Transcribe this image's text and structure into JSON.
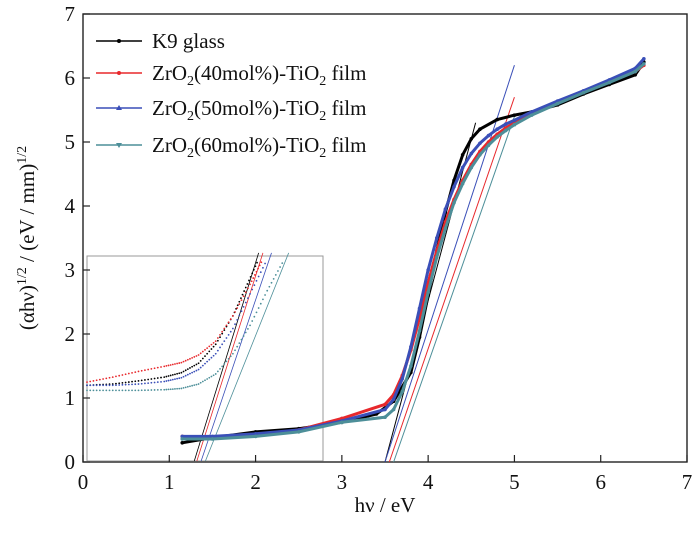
{
  "chart_data": {
    "type": "line",
    "title": "",
    "xlabel": {
      "main": "hν / eV"
    },
    "ylabel": {
      "a": "(αhν)",
      "sup1": "1/2",
      "b": " / (eV / mm)",
      "sup2": "1/2"
    },
    "xlim": [
      0,
      7
    ],
    "ylim": [
      0,
      7
    ],
    "xticks": [
      "0",
      "1",
      "2",
      "3",
      "4",
      "5",
      "6",
      "7"
    ],
    "yticks": [
      "0",
      "1",
      "2",
      "3",
      "4",
      "5",
      "6",
      "7"
    ],
    "grid": false,
    "legend_position": "top-left",
    "legend": [
      {
        "pre": "K9 glass",
        "sub": "",
        "mid": "",
        "sub2": "",
        "post": ""
      },
      {
        "pre": "ZrO",
        "sub": "2",
        "mid": "(40mol%)-TiO",
        "sub2": "2",
        "post": " film"
      },
      {
        "pre": "ZrO",
        "sub": "2",
        "mid": "(50mol%)-TiO",
        "sub2": "2",
        "post": " film"
      },
      {
        "pre": "ZrO",
        "sub": "2",
        "mid": "(60mol%)-TiO",
        "sub2": "2",
        "post": " film"
      }
    ],
    "series": [
      {
        "color": "#000000",
        "x": [
          1.15,
          1.5,
          2.0,
          2.5,
          3.0,
          3.4,
          3.6,
          3.8,
          3.9,
          4.0,
          4.1,
          4.2,
          4.3,
          4.4,
          4.5,
          4.6,
          4.8,
          5.0,
          5.2,
          5.5,
          5.8,
          6.1,
          6.4,
          6.5
        ],
        "y": [
          0.3,
          0.38,
          0.47,
          0.52,
          0.62,
          0.75,
          0.95,
          1.4,
          1.95,
          2.6,
          3.3,
          3.9,
          4.4,
          4.8,
          5.05,
          5.2,
          5.35,
          5.42,
          5.47,
          5.58,
          5.75,
          5.9,
          6.05,
          6.25
        ]
      },
      {
        "color": "#e8282c",
        "x": [
          1.15,
          1.5,
          2.0,
          2.5,
          3.0,
          3.5,
          3.6,
          3.7,
          3.8,
          3.9,
          4.0,
          4.1,
          4.2,
          4.3,
          4.4,
          4.5,
          4.6,
          4.7,
          4.8,
          4.9,
          5.0,
          5.2,
          5.5,
          5.8,
          6.1,
          6.4,
          6.5
        ],
        "y": [
          0.4,
          0.38,
          0.42,
          0.5,
          0.68,
          0.9,
          1.05,
          1.35,
          1.75,
          2.25,
          2.8,
          3.3,
          3.75,
          4.1,
          4.4,
          4.65,
          4.85,
          5.0,
          5.12,
          5.22,
          5.3,
          5.45,
          5.62,
          5.78,
          5.95,
          6.1,
          6.2
        ]
      },
      {
        "color": "#3a4fb8",
        "x": [
          1.15,
          1.5,
          2.0,
          2.5,
          3.0,
          3.5,
          3.6,
          3.7,
          3.8,
          3.9,
          4.0,
          4.1,
          4.2,
          4.3,
          4.4,
          4.5,
          4.6,
          4.7,
          4.8,
          4.9,
          5.0,
          5.2,
          5.5,
          5.8,
          6.1,
          6.4,
          6.5
        ],
        "y": [
          0.4,
          0.4,
          0.44,
          0.5,
          0.64,
          0.82,
          0.98,
          1.3,
          1.8,
          2.4,
          3.0,
          3.5,
          3.95,
          4.3,
          4.6,
          4.82,
          4.98,
          5.1,
          5.2,
          5.28,
          5.34,
          5.47,
          5.64,
          5.8,
          5.97,
          6.15,
          6.3
        ]
      },
      {
        "color": "#4d8f99",
        "x": [
          1.15,
          1.5,
          2.0,
          2.5,
          3.0,
          3.5,
          3.6,
          3.7,
          3.8,
          3.9,
          4.0,
          4.1,
          4.2,
          4.3,
          4.4,
          4.5,
          4.6,
          4.7,
          4.8,
          4.9,
          5.0,
          5.2,
          5.5,
          5.8,
          6.1,
          6.4,
          6.5
        ],
        "y": [
          0.36,
          0.36,
          0.4,
          0.47,
          0.62,
          0.7,
          0.82,
          1.1,
          1.5,
          2.05,
          2.65,
          3.2,
          3.65,
          4.05,
          4.35,
          4.6,
          4.8,
          4.95,
          5.08,
          5.18,
          5.27,
          5.42,
          5.6,
          5.77,
          5.93,
          6.1,
          6.22
        ]
      }
    ],
    "tangent_lines": [
      {
        "color": "#000000",
        "x": [
          3.5,
          4.55
        ],
        "y": [
          0.0,
          5.3
        ]
      },
      {
        "color": "#e8282c",
        "x": [
          3.55,
          5.0
        ],
        "y": [
          0.0,
          5.7
        ]
      },
      {
        "color": "#3a4fb8",
        "x": [
          3.5,
          5.0
        ],
        "y": [
          0.0,
          6.2
        ]
      },
      {
        "color": "#4d8f99",
        "x": [
          3.6,
          5.0
        ],
        "y": [
          0.0,
          5.4
        ]
      }
    ],
    "inset": {
      "series": [
        {
          "color": "#000000",
          "x": [
            0.0,
            0.3,
            0.6,
            0.9,
            1.1,
            1.3,
            1.5,
            1.7,
            1.85,
            2.0
          ],
          "y": [
            1.2,
            1.22,
            1.27,
            1.33,
            1.4,
            1.55,
            1.85,
            2.3,
            2.75,
            3.2
          ]
        },
        {
          "color": "#e8282c",
          "x": [
            0.0,
            0.3,
            0.6,
            0.9,
            1.1,
            1.3,
            1.5,
            1.7,
            1.9,
            2.05
          ],
          "y": [
            1.25,
            1.33,
            1.42,
            1.5,
            1.56,
            1.68,
            1.9,
            2.3,
            2.8,
            3.2
          ]
        },
        {
          "color": "#3a4fb8",
          "x": [
            0.0,
            0.3,
            0.6,
            0.9,
            1.1,
            1.3,
            1.5,
            1.7,
            1.9,
            2.1
          ],
          "y": [
            1.2,
            1.2,
            1.22,
            1.26,
            1.32,
            1.45,
            1.7,
            2.1,
            2.65,
            3.2
          ]
        },
        {
          "color": "#4d8f99",
          "x": [
            0.0,
            0.3,
            0.6,
            0.9,
            1.1,
            1.3,
            1.5,
            1.7,
            1.9,
            2.1,
            2.3
          ],
          "y": [
            1.12,
            1.12,
            1.12,
            1.13,
            1.15,
            1.22,
            1.38,
            1.7,
            2.15,
            2.7,
            3.2
          ]
        }
      ],
      "tangent_lines": [
        {
          "color": "#e8282c",
          "x": [
            1.28,
            2.05
          ],
          "y": [
            0.0,
            3.3
          ]
        },
        {
          "color": "#3a4fb8",
          "x": [
            1.33,
            2.15
          ],
          "y": [
            0.0,
            3.3
          ]
        },
        {
          "color": "#4d8f99",
          "x": [
            1.38,
            2.35
          ],
          "y": [
            0.0,
            3.3
          ]
        },
        {
          "color": "#000000",
          "x": [
            1.25,
            2.0
          ],
          "y": [
            0.0,
            3.3
          ]
        }
      ]
    }
  }
}
